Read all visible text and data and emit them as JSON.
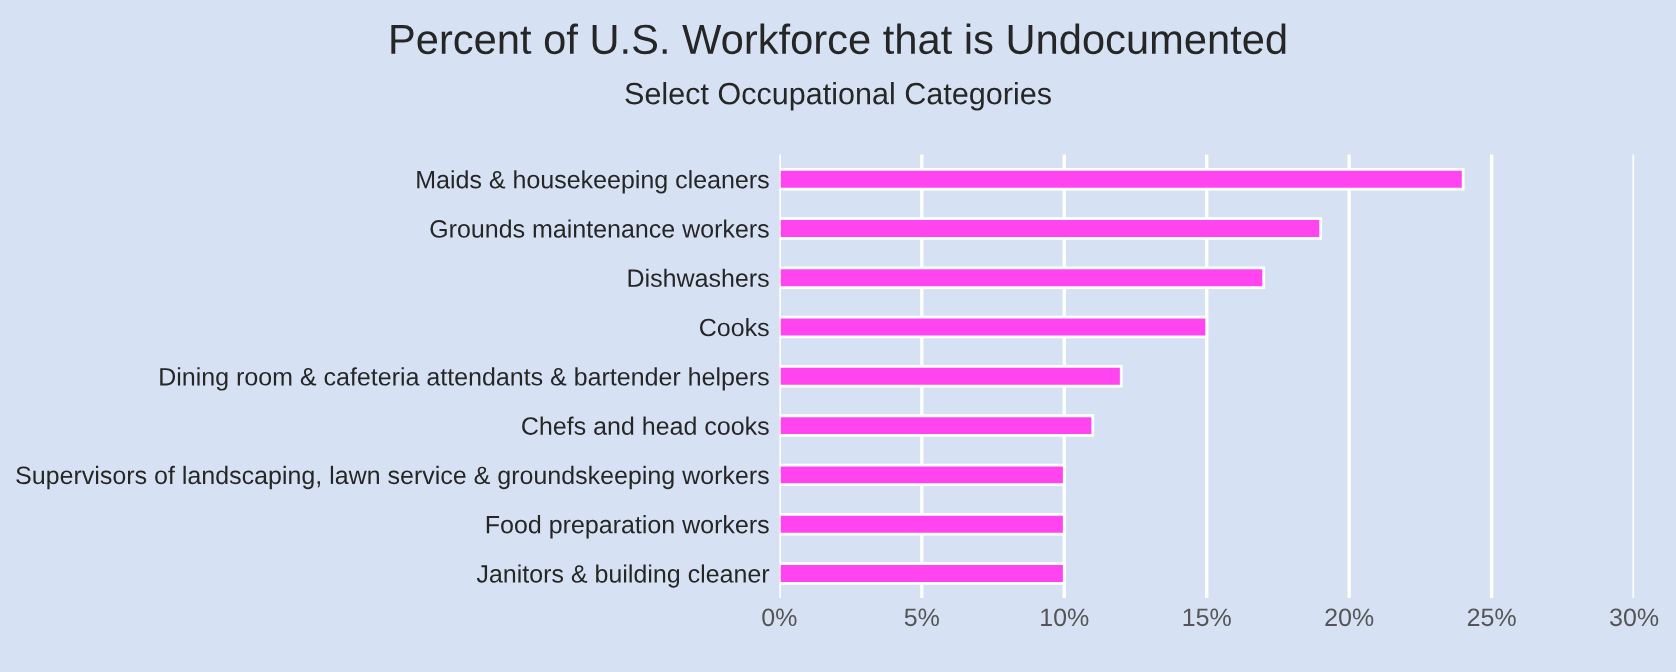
{
  "chart_data": {
    "type": "bar",
    "orientation": "horizontal",
    "title": "Percent of U.S. Workforce that is Undocumented",
    "subtitle": "Select Occupational Categories",
    "categories": [
      "Maids & housekeeping cleaners",
      "Grounds maintenance workers",
      "Dishwashers",
      "Cooks",
      "Dining room & cafeteria attendants & bartender helpers",
      "Chefs and head cooks",
      "Supervisors of landscaping, lawn service & groundskeeping workers",
      "Food preparation workers",
      "Janitors & building cleaner"
    ],
    "values": [
      24,
      19,
      17,
      15,
      12,
      11,
      10,
      10,
      10
    ],
    "color": "#ff44f0",
    "xlim": [
      0,
      30
    ],
    "xticks": [
      {
        "value": 0,
        "label": "0%"
      },
      {
        "value": 5,
        "label": "5%"
      },
      {
        "value": 10,
        "label": "10%"
      },
      {
        "value": 15,
        "label": "15%"
      },
      {
        "value": 20,
        "label": "20%"
      },
      {
        "value": 25,
        "label": "25%"
      },
      {
        "value": 30,
        "label": "30%"
      }
    ],
    "grid": "x",
    "legend": false
  }
}
